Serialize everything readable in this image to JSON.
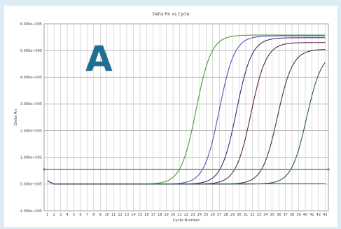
{
  "panel": {
    "letter": "A"
  },
  "chart_data": {
    "type": "line",
    "title": "Delta Rn vs Cycle",
    "xlabel": "Cycle Number",
    "ylabel": "Delta Rn",
    "x_ticks": [
      1,
      2,
      3,
      4,
      5,
      6,
      7,
      8,
      9,
      10,
      11,
      12,
      13,
      14,
      15,
      16,
      17,
      18,
      19,
      20,
      21,
      22,
      23,
      24,
      25,
      26,
      27,
      28,
      29,
      30,
      31,
      32,
      33,
      34,
      35,
      36,
      37,
      38,
      39,
      40,
      41,
      42,
      43
    ],
    "y_ticks": [
      -1.0,
      0.0,
      1.0,
      2.0,
      3.0,
      4.0,
      5.0,
      6.0
    ],
    "y_tick_labels": [
      "-1.000e+005",
      "0.000e+005",
      "1.000e+005",
      "2.000e+005",
      "3.000e+005",
      "4.000e+005",
      "5.000e+005",
      "6.000e+005"
    ],
    "xlim": [
      0.5,
      43.5
    ],
    "ylim": [
      -1.0,
      6.0
    ],
    "grid": true,
    "threshold": {
      "value": 0.55,
      "color": "#4a9a3c"
    },
    "series": [
      {
        "color": "#4a9a3c",
        "ct": 23.5,
        "plateau": 5.58
      },
      {
        "color": "#5a4fb4",
        "ct": 27.0,
        "plateau": 5.55
      },
      {
        "color": "#3e2a6e",
        "ct": 29.6,
        "plateau": 5.48
      },
      {
        "color": "#5a2450",
        "ct": 31.8,
        "plateau": 5.3
      },
      {
        "color": "#3a3a3a",
        "ct": 35.8,
        "plateau": 5.05
      },
      {
        "color": "#2a5a48",
        "ct": 40.2,
        "plateau": 4.95
      },
      {
        "color": "#5a4fb4",
        "ct": 0,
        "plateau": 0
      }
    ]
  }
}
